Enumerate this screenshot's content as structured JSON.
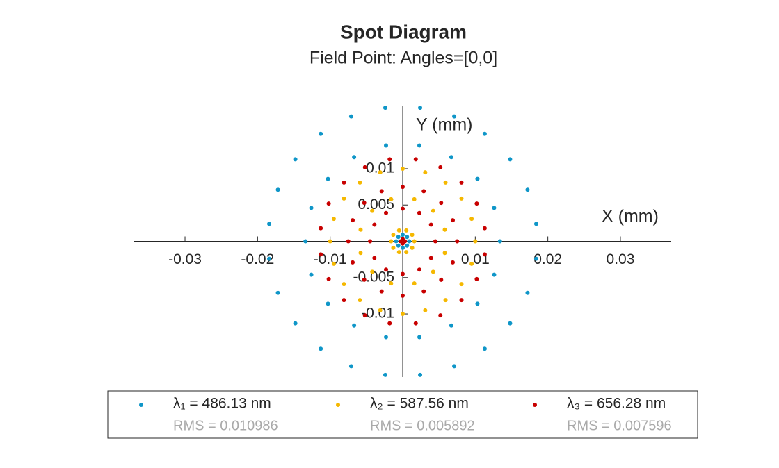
{
  "chart_data": {
    "type": "scatter",
    "title": "Spot Diagram",
    "subtitle": "Field Point: Angles=[0,0]",
    "x_label": "X (mm)",
    "y_label": "Y (mm)",
    "xlim": [
      -0.037,
      0.037
    ],
    "ylim": [
      -0.0187,
      0.0187
    ],
    "xticks": [
      -0.03,
      -0.02,
      -0.01,
      0.01,
      0.02,
      0.03
    ],
    "yticks": [
      -0.01,
      -0.005,
      0.005,
      0.01
    ],
    "series": [
      {
        "name": "λ₁ = 486.13 nm",
        "rms_label": "RMS = 0.010986",
        "color": "#0f96c8",
        "x": [
          0.0184,
          0.0172,
          0.0148,
          0.0113,
          0.0071,
          0.0024,
          -0.0024,
          -0.0071,
          -0.0113,
          -0.0148,
          -0.0172,
          -0.0184,
          -0.0184,
          -0.0172,
          -0.0148,
          -0.0113,
          -0.0071,
          -0.0024,
          0.0024,
          0.0071,
          0.0113,
          0.0148,
          0.0172,
          0.0184,
          0.0134,
          0.0126,
          0.0103,
          0.0067,
          0.0023,
          -0.0023,
          -0.0067,
          -0.0103,
          -0.0126,
          -0.0134,
          -0.0126,
          -0.0103,
          -0.0067,
          -0.0023,
          0.0023,
          0.0067,
          0.0103,
          0.0126,
          0.0009,
          0.0006,
          0,
          -0.0006,
          -0.0009,
          -0.0006,
          0,
          0.0006
        ],
        "y": [
          0.0024,
          0.0071,
          0.0113,
          0.0148,
          0.0172,
          0.0184,
          0.0184,
          0.0172,
          0.0148,
          0.0113,
          0.0071,
          0.0024,
          -0.0024,
          -0.0071,
          -0.0113,
          -0.0148,
          -0.0172,
          -0.0184,
          -0.0184,
          -0.0172,
          -0.0148,
          -0.0113,
          -0.0071,
          -0.0024,
          0,
          0.0046,
          0.0086,
          0.0116,
          0.0132,
          0.0132,
          0.0116,
          0.0086,
          0.0046,
          0,
          -0.0046,
          -0.0086,
          -0.0116,
          -0.0132,
          -0.0132,
          -0.0116,
          -0.0086,
          -0.0046,
          0,
          0.0006,
          0.0009,
          0.0006,
          0,
          -0.0006,
          -0.0009,
          -0.0006
        ]
      },
      {
        "name": "λ₂ = 587.56 nm",
        "rms_label": "RMS = 0.005892",
        "color": "#f5b800",
        "x": [
          0.01,
          0.0095,
          0.0081,
          0.0059,
          0.0031,
          0,
          -0.0031,
          -0.0059,
          -0.0081,
          -0.0095,
          -0.01,
          -0.0095,
          -0.0081,
          -0.0059,
          -0.0031,
          0,
          0.0031,
          0.0059,
          0.0081,
          0.0095,
          0.0058,
          0.0042,
          0.0016,
          -0.0016,
          -0.0042,
          -0.0058,
          -0.0058,
          -0.0042,
          -0.0016,
          0.0016,
          0.0042,
          0.0058,
          0.0016,
          0.0013,
          0.0005,
          -0.0005,
          -0.0013,
          -0.0016,
          -0.0013,
          -0.0005,
          0.0005,
          0.0013
        ],
        "y": [
          0,
          0.0031,
          0.0059,
          0.0081,
          0.0095,
          0.01,
          0.0095,
          0.0081,
          0.0059,
          0.0031,
          0,
          -0.0031,
          -0.0059,
          -0.0081,
          -0.0095,
          -0.01,
          -0.0095,
          -0.0081,
          -0.0059,
          -0.0031,
          0.0016,
          0.0042,
          0.0058,
          0.0058,
          0.0042,
          0.0016,
          -0.0016,
          -0.0042,
          -0.0058,
          -0.0058,
          -0.0042,
          -0.0016,
          0,
          0.0009,
          0.0015,
          0.0015,
          0.0009,
          0,
          -0.0009,
          -0.0015,
          -0.0015,
          -0.0009
        ]
      },
      {
        "name": "λ₃ = 656.28 nm",
        "rms_label": "RMS = 0.007596",
        "color": "#c80000",
        "x": [
          0.0113,
          0.0102,
          0.0081,
          0.0052,
          0.0018,
          -0.0018,
          -0.0052,
          -0.0081,
          -0.0102,
          -0.0113,
          -0.0113,
          -0.0102,
          -0.0081,
          -0.0052,
          -0.0018,
          0.0018,
          0.0052,
          0.0081,
          0.0102,
          0.0113,
          0.0075,
          0.0069,
          0.0053,
          0.0029,
          0,
          -0.0029,
          -0.0053,
          -0.0069,
          -0.0075,
          -0.0069,
          -0.0053,
          -0.0029,
          0,
          0.0029,
          0.0053,
          0.0069,
          0.0045,
          0.0039,
          0.0023,
          0,
          -0.0023,
          -0.0039,
          -0.0045,
          -0.0039,
          -0.0023,
          0,
          0.0023,
          0.0039,
          0.0003,
          0,
          -0.0003,
          0
        ],
        "y": [
          0.0018,
          0.0052,
          0.0081,
          0.0102,
          0.0113,
          0.0113,
          0.0102,
          0.0081,
          0.0052,
          0.0018,
          -0.0018,
          -0.0052,
          -0.0081,
          -0.0102,
          -0.0113,
          -0.0113,
          -0.0102,
          -0.0081,
          -0.0052,
          -0.0018,
          0,
          0.0029,
          0.0053,
          0.0069,
          0.0075,
          0.0069,
          0.0053,
          0.0029,
          0,
          -0.0029,
          -0.0053,
          -0.0069,
          -0.0075,
          -0.0069,
          -0.0053,
          -0.0029,
          0,
          0.0023,
          0.0039,
          0.0045,
          0.0039,
          0.0023,
          0,
          -0.0023,
          -0.0039,
          -0.0045,
          -0.0039,
          -0.0023,
          0,
          0.0003,
          0,
          -0.0003
        ]
      }
    ]
  }
}
